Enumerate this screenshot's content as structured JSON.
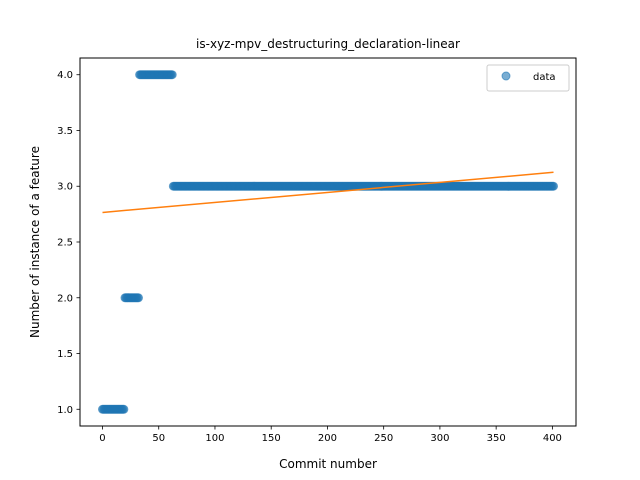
{
  "chart_data": {
    "type": "scatter",
    "title": "is-xyz-mpv_destructuring_declaration-linear",
    "xlabel": "Commit number",
    "ylabel": "Number of instance of a feature",
    "xlim": [
      -20,
      421
    ],
    "ylim": [
      0.85,
      4.15
    ],
    "x_ticks": [
      0,
      50,
      100,
      150,
      200,
      250,
      300,
      350,
      400
    ],
    "y_ticks": [
      1.0,
      1.5,
      2.0,
      2.5,
      3.0,
      3.5,
      4.0
    ],
    "x_tick_labels": [
      "0",
      "50",
      "100",
      "150",
      "200",
      "250",
      "300",
      "350",
      "400"
    ],
    "y_tick_labels": [
      "1.0",
      "1.5",
      "2.0",
      "2.5",
      "3.0",
      "3.5",
      "4.0"
    ],
    "grid": false,
    "legend_placement": "top-right",
    "series": [
      {
        "name": "data",
        "kind": "scatter",
        "color": "#1f77b4",
        "segments": [
          {
            "x_start": 0,
            "x_end": 19,
            "y": 1.0
          },
          {
            "x_start": 20,
            "x_end": 32,
            "y": 2.0
          },
          {
            "x_start": 33,
            "x_end": 62,
            "y": 4.0
          },
          {
            "x_start": 63,
            "x_end": 401,
            "y": 3.0
          }
        ]
      },
      {
        "kind": "line",
        "color": "#ff7f0e",
        "x": [
          0,
          401
        ],
        "y": [
          2.765,
          3.125
        ]
      }
    ]
  }
}
